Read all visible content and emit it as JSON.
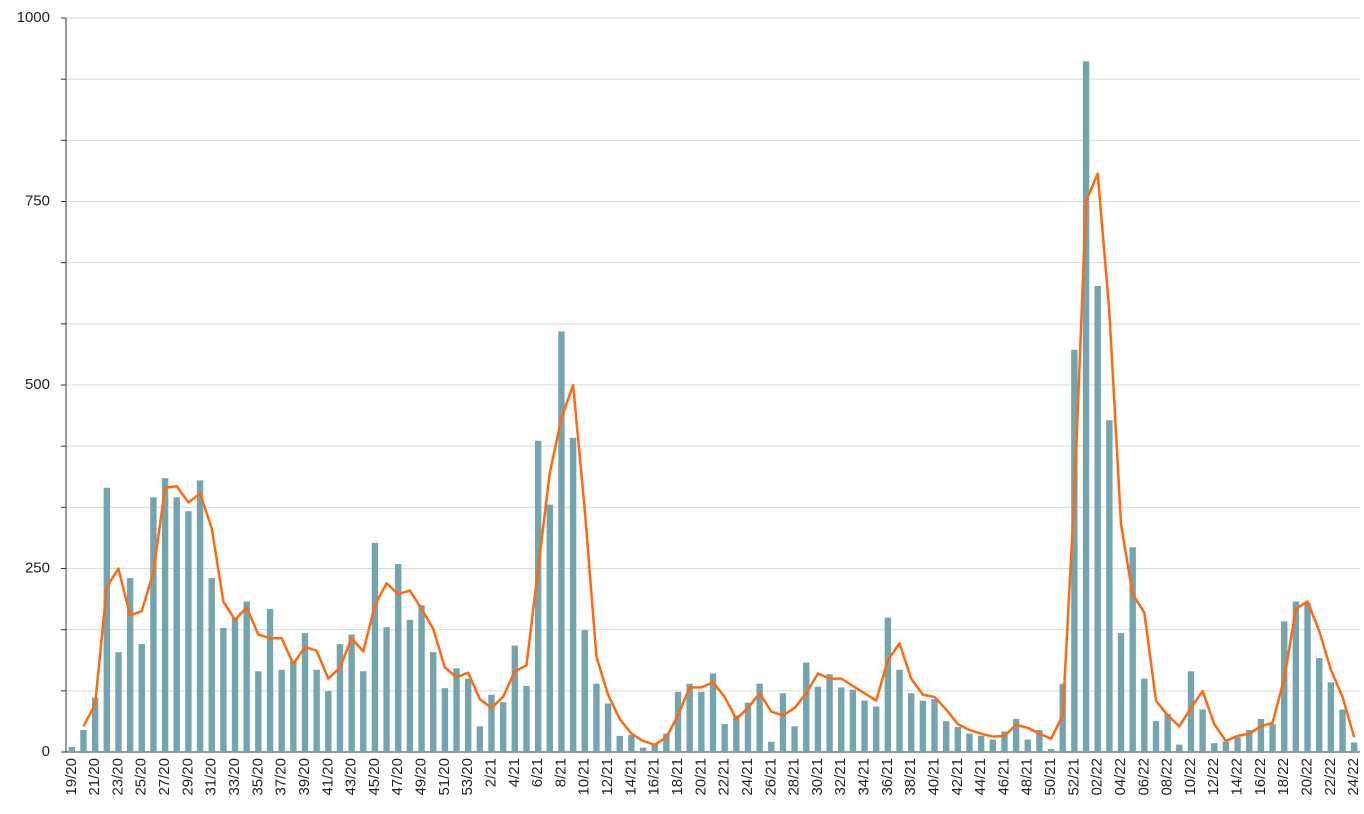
{
  "chart_data": {
    "type": "bar",
    "categories": [
      "19/20",
      null,
      "21/20",
      null,
      "23/20",
      null,
      "25/20",
      null,
      "27/20",
      null,
      "29/20",
      null,
      "31/20",
      null,
      "33/20",
      null,
      "35/20",
      null,
      "37/20",
      null,
      "39/20",
      null,
      "41/20",
      null,
      "43/20",
      null,
      "45/20",
      null,
      "47/20",
      null,
      "49/20",
      null,
      "51/20",
      null,
      "53/20",
      null,
      "2/21",
      null,
      "4/21",
      null,
      "6/21",
      null,
      "8/21",
      null,
      "10/21",
      null,
      "12/21",
      null,
      "14/21",
      null,
      "16/21",
      null,
      "18/21",
      null,
      "20/21",
      null,
      "22/21",
      null,
      "24/21",
      null,
      "26/21",
      null,
      "28/21",
      null,
      "30/21",
      null,
      "32/21",
      null,
      "34/21",
      null,
      "36/21",
      null,
      "38/21",
      null,
      "40/21",
      null,
      "42/21",
      null,
      "44/21",
      null,
      "46/21",
      null,
      "48/21",
      null,
      "50/21",
      null,
      "52/21",
      null,
      "02/22",
      null,
      "04/22",
      null,
      "06/22",
      null,
      "08/22",
      null,
      "10/22",
      null,
      "12/22",
      null,
      "14/22",
      null,
      "16/22",
      null,
      "18/22",
      null,
      "20/22",
      null,
      "22/22",
      null,
      "24/22"
    ],
    "series": [
      {
        "type": "bar",
        "color": "#74a4ad",
        "values": [
          7,
          30,
          74,
          360,
          136,
          237,
          147,
          347,
          373,
          347,
          328,
          370,
          237,
          169,
          183,
          205,
          110,
          195,
          112,
          125,
          162,
          112,
          83,
          147,
          160,
          110,
          285,
          170,
          256,
          180,
          200,
          136,
          87,
          114,
          100,
          35,
          78,
          68,
          145,
          90,
          424,
          337,
          573,
          428,
          166,
          93,
          66,
          22,
          23,
          6,
          12,
          25,
          82,
          93,
          82,
          107,
          38,
          50,
          67,
          93,
          14,
          80,
          35,
          122,
          89,
          106,
          88,
          85,
          70,
          62,
          183,
          112,
          80,
          70,
          72,
          42,
          34,
          25,
          22,
          17,
          28,
          45,
          17,
          30,
          4,
          93,
          548,
          941,
          635,
          452,
          162,
          279,
          100,
          42,
          52,
          10,
          110,
          58,
          12,
          14,
          20,
          30,
          45,
          38,
          178,
          205,
          203,
          128,
          95,
          58,
          13
        ]
      },
      {
        "type": "line",
        "color": "#ff6a10",
        "values": [
          null,
          35,
          65,
          225,
          250,
          186,
          192,
          245,
          360,
          362,
          340,
          352,
          305,
          205,
          180,
          197,
          160,
          155,
          155,
          120,
          143,
          138,
          100,
          115,
          155,
          137,
          200,
          230,
          215,
          220,
          195,
          168,
          115,
          102,
          108,
          72,
          60,
          75,
          110,
          118,
          250,
          380,
          455,
          500,
          330,
          130,
          78,
          45,
          25,
          15,
          10,
          20,
          50,
          88,
          88,
          95,
          75,
          45,
          60,
          80,
          55,
          50,
          60,
          80,
          107,
          100,
          100,
          90,
          80,
          70,
          125,
          148,
          100,
          78,
          75,
          58,
          38,
          30,
          25,
          21,
          22,
          37,
          33,
          25,
          18,
          50,
          350,
          750,
          788,
          600,
          310,
          215,
          190,
          70,
          50,
          35,
          60,
          83,
          38,
          15,
          22,
          25,
          35,
          40,
          100,
          195,
          205,
          165,
          112,
          75,
          20
        ]
      }
    ],
    "ylim": [
      0,
      1000
    ],
    "yticks": [
      0,
      250,
      500,
      750,
      1000
    ],
    "minor_yticks": [
      83.33,
      166.67,
      333.33,
      416.67,
      583.33,
      666.67,
      833.33,
      916.67
    ],
    "grid": true
  }
}
